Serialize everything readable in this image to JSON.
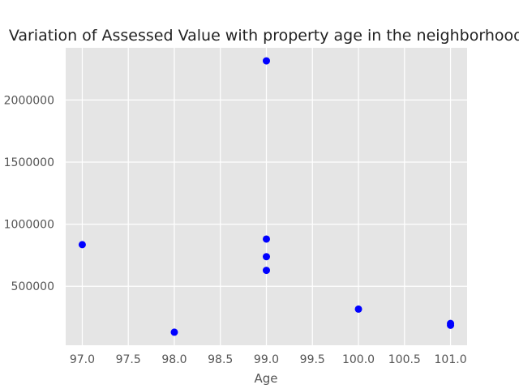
{
  "chart_data": {
    "type": "scatter",
    "title": "Variation of Assessed Value with property age in the neighborhood",
    "xlabel": "Age",
    "ylabel": "",
    "xlim": [
      96.82,
      101.18
    ],
    "ylim": [
      25000,
      2420000
    ],
    "xticks": [
      97.0,
      97.5,
      98.0,
      98.5,
      99.0,
      99.5,
      100.0,
      100.5,
      101.0
    ],
    "xtick_labels": [
      "97.0",
      "97.5",
      "98.0",
      "98.5",
      "99.0",
      "99.5",
      "100.0",
      "100.5",
      "101.0"
    ],
    "yticks": [
      500000,
      1000000,
      1500000,
      2000000
    ],
    "ytick_labels": [
      "500000",
      "1000000",
      "1500000",
      "2000000"
    ],
    "grid": true,
    "legend": "none",
    "background_color": "#e5e5e5",
    "grid_color": "#ffffff",
    "marker_color": "#0000ff",
    "series": [
      {
        "points": [
          {
            "x": 97,
            "y": 835000
          },
          {
            "x": 98,
            "y": 130000
          },
          {
            "x": 99,
            "y": 2315000
          },
          {
            "x": 99,
            "y": 880000
          },
          {
            "x": 99,
            "y": 738000
          },
          {
            "x": 99,
            "y": 628000
          },
          {
            "x": 100,
            "y": 316000
          },
          {
            "x": 101,
            "y": 200000
          },
          {
            "x": 101,
            "y": 186000
          }
        ]
      }
    ]
  }
}
